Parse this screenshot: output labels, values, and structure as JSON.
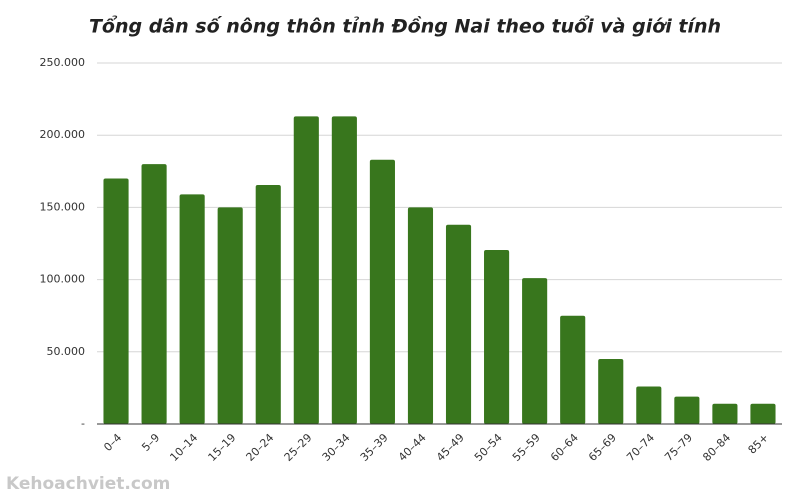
{
  "chart_data": {
    "type": "bar",
    "title": "Tổng dân số nông thôn tỉnh Đồng Nai theo tuổi và giới tính",
    "categories": [
      "0–4",
      "5–9",
      "10–14",
      "15–19",
      "20–24",
      "25–29",
      "30–34",
      "35–39",
      "40–44",
      "45–49",
      "50–54",
      "55–59",
      "60–64",
      "65–69",
      "70–74",
      "75–79",
      "80–84",
      "85+"
    ],
    "values": [
      170000,
      180000,
      159000,
      150000,
      165500,
      213000,
      213000,
      183000,
      150000,
      138000,
      120500,
      101000,
      75000,
      45000,
      26000,
      19000,
      14000,
      14000
    ],
    "color": "#38761d",
    "ylim": [
      0,
      250000
    ],
    "yticks": [
      {
        "value": 0,
        "label": "-"
      },
      {
        "value": 50000,
        "label": "50.000"
      },
      {
        "value": 100000,
        "label": "100.000"
      },
      {
        "value": 150000,
        "label": "150.000"
      },
      {
        "value": 200000,
        "label": "200.000"
      },
      {
        "value": 250000,
        "label": "250.000"
      }
    ],
    "grid": true
  },
  "watermark": "Kehoachviet.com"
}
